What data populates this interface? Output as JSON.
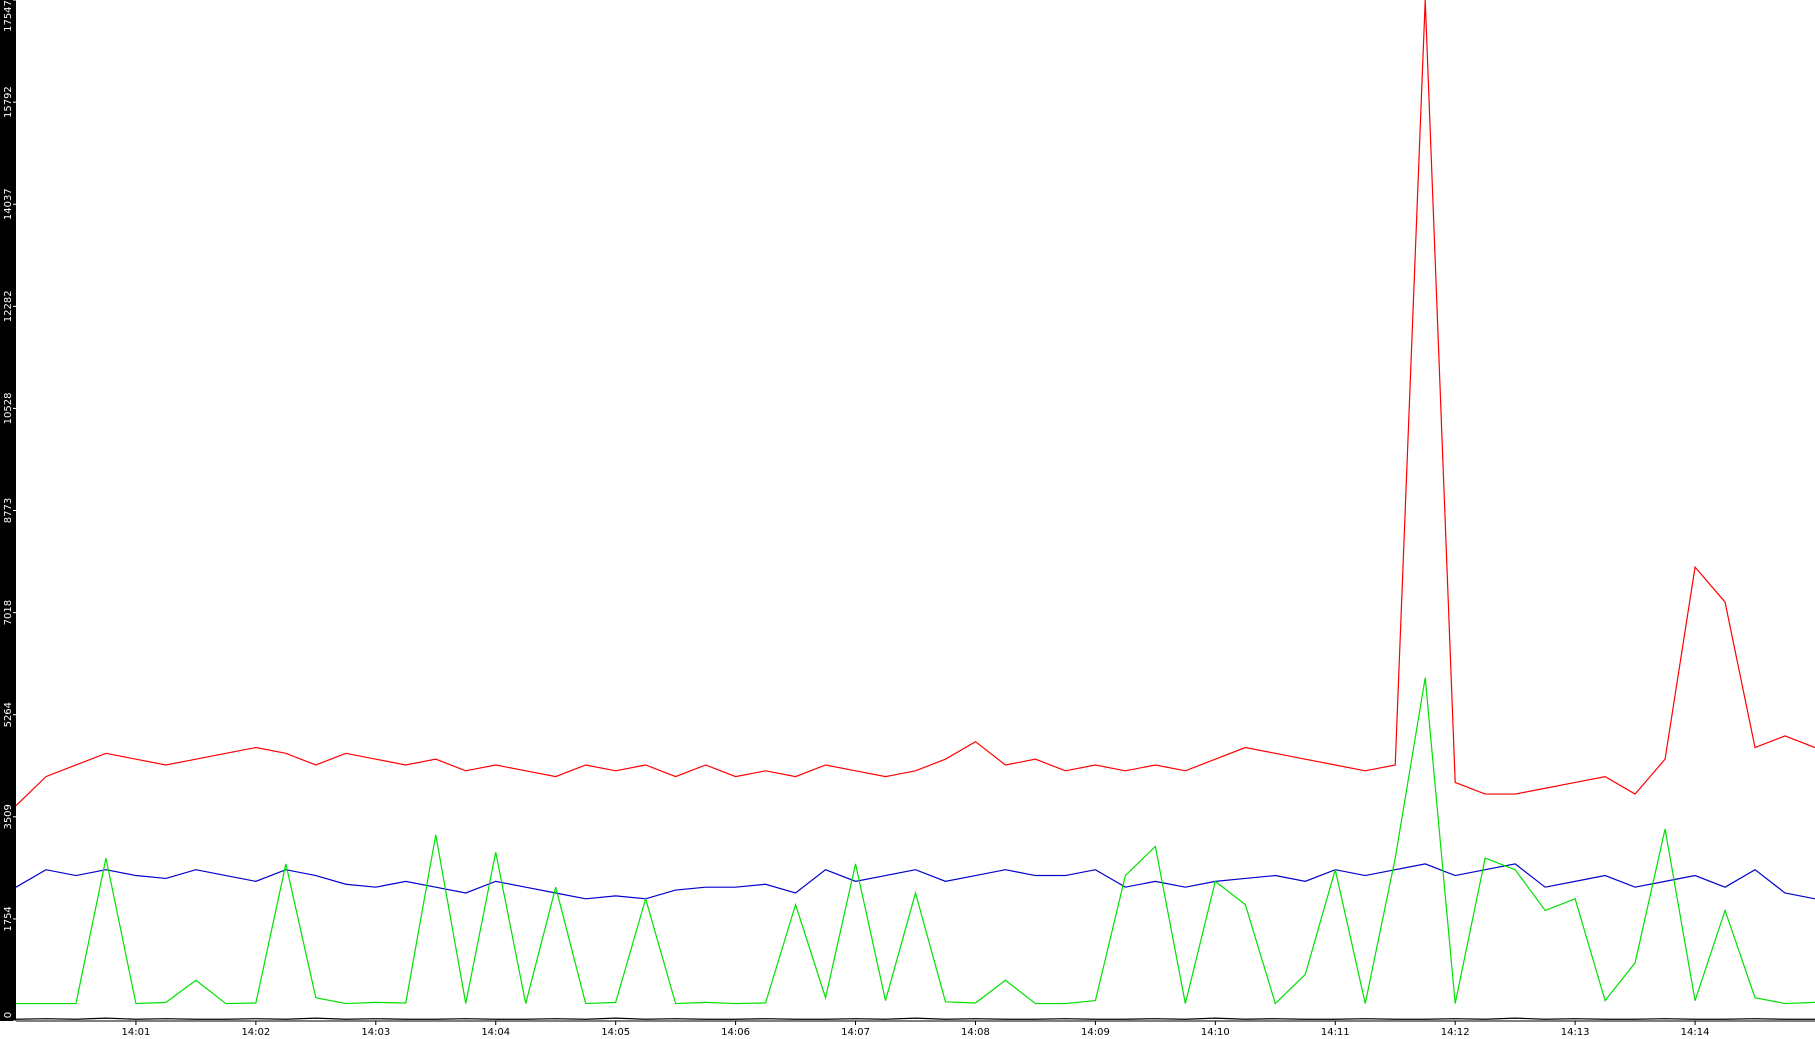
{
  "chart_data": {
    "type": "line",
    "x": [
      0,
      0.25,
      0.5,
      0.75,
      1,
      1.25,
      1.5,
      1.75,
      2,
      2.25,
      2.5,
      2.75,
      3,
      3.25,
      3.5,
      3.75,
      4,
      4.25,
      4.5,
      4.75,
      5,
      5.25,
      5.5,
      5.75,
      6,
      6.25,
      6.5,
      6.75,
      7,
      7.25,
      7.5,
      7.75,
      8,
      8.25,
      8.5,
      8.75,
      9,
      9.25,
      9.5,
      9.75,
      10,
      10.25,
      10.5,
      10.75,
      11,
      11.25,
      11.5,
      11.75,
      12,
      12.25,
      12.5,
      12.75,
      13,
      13.25,
      13.5,
      13.75,
      14,
      14.25,
      14.5,
      14.75,
      15
    ],
    "xlim": [
      0,
      15
    ],
    "xticks": [
      {
        "value": 1,
        "label": "14:01"
      },
      {
        "value": 2,
        "label": "14:02"
      },
      {
        "value": 3,
        "label": "14:03"
      },
      {
        "value": 4,
        "label": "14:04"
      },
      {
        "value": 5,
        "label": "14:05"
      },
      {
        "value": 6,
        "label": "14:06"
      },
      {
        "value": 7,
        "label": "14:07"
      },
      {
        "value": 8,
        "label": "14:08"
      },
      {
        "value": 9,
        "label": "14:09"
      },
      {
        "value": 10,
        "label": "14:10"
      },
      {
        "value": 11,
        "label": "14:11"
      },
      {
        "value": 12,
        "label": "14:12"
      },
      {
        "value": 13,
        "label": "14:13"
      },
      {
        "value": 14,
        "label": "14:14"
      }
    ],
    "ylim": [
      0,
      17547
    ],
    "yticks": [
      0,
      1754,
      3509,
      5264,
      7018,
      8773,
      10528,
      12282,
      14037,
      15792,
      17547
    ],
    "series": [
      {
        "color": "#ff0000",
        "values": [
          3700,
          4200,
          4400,
          4600,
          4500,
          4400,
          4500,
          4600,
          4700,
          4600,
          4400,
          4600,
          4500,
          4400,
          4500,
          4300,
          4400,
          4300,
          4200,
          4400,
          4300,
          4400,
          4200,
          4400,
          4200,
          4300,
          4200,
          4400,
          4300,
          4200,
          4300,
          4500,
          4800,
          4400,
          4500,
          4300,
          4400,
          4300,
          4400,
          4300,
          4500,
          4700,
          4600,
          4500,
          4400,
          4300,
          4400,
          17547,
          4100,
          3900,
          3900,
          4000,
          4100,
          4200,
          3900,
          4500,
          7800,
          7200,
          4700,
          4900,
          4700
        ]
      },
      {
        "color": "#0000cc",
        "values": [
          2300,
          2600,
          2500,
          2600,
          2500,
          2450,
          2600,
          2500,
          2400,
          2600,
          2500,
          2350,
          2300,
          2400,
          2300,
          2200,
          2400,
          2300,
          2200,
          2100,
          2150,
          2100,
          2250,
          2300,
          2300,
          2350,
          2200,
          2600,
          2400,
          2500,
          2600,
          2400,
          2500,
          2600,
          2500,
          2500,
          2600,
          2300,
          2400,
          2300,
          2400,
          2450,
          2500,
          2400,
          2600,
          2500,
          2600,
          2700,
          2500,
          2600,
          2700,
          2300,
          2400,
          2500,
          2300,
          2400,
          2500,
          2300,
          2600,
          2200,
          2100
        ]
      },
      {
        "color": "#00e000",
        "values": [
          300,
          300,
          300,
          2800,
          300,
          320,
          700,
          300,
          310,
          2700,
          400,
          300,
          320,
          310,
          3200,
          300,
          2900,
          300,
          2300,
          300,
          320,
          2100,
          300,
          320,
          300,
          310,
          2000,
          400,
          2700,
          350,
          2200,
          330,
          310,
          700,
          300,
          300,
          350,
          2500,
          3000,
          300,
          2400,
          2000,
          300,
          800,
          2600,
          300,
          2800,
          5900,
          300,
          2800,
          2600,
          1900,
          2100,
          350,
          1000,
          3300,
          350,
          1900,
          400,
          300,
          320
        ]
      },
      {
        "color": "#000000",
        "values": [
          30,
          40,
          30,
          50,
          30,
          40,
          30,
          30,
          40,
          30,
          50,
          30,
          40,
          30,
          30,
          40,
          30,
          30,
          40,
          30,
          50,
          30,
          40,
          30,
          30,
          40,
          30,
          30,
          40,
          30,
          50,
          30,
          40,
          30,
          30,
          40,
          30,
          30,
          40,
          30,
          50,
          30,
          40,
          30,
          30,
          40,
          30,
          30,
          40,
          30,
          50,
          30,
          40,
          30,
          30,
          40,
          30,
          30,
          40,
          30,
          30
        ]
      }
    ]
  }
}
